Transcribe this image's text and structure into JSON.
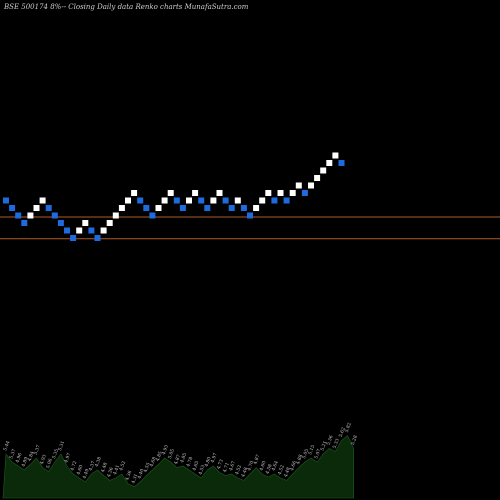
{
  "title": "BSE 500174  8%-- Closing Daily data  Renko  charts MunafaSutra.com",
  "chart_data": {
    "type": "renko",
    "symbol": "BSE 500174",
    "colors": {
      "background": "#000000",
      "up_brick": "#ffffff",
      "down_brick": "#1e6be0",
      "reference_line": "#b05a2a",
      "volume_fill": "#0a2a0a"
    },
    "bricks": [
      {
        "dir": "down",
        "level": 19
      },
      {
        "dir": "down",
        "level": 18
      },
      {
        "dir": "down",
        "level": 17
      },
      {
        "dir": "down",
        "level": 16
      },
      {
        "dir": "up",
        "level": 17
      },
      {
        "dir": "up",
        "level": 18
      },
      {
        "dir": "up",
        "level": 19
      },
      {
        "dir": "down",
        "level": 18
      },
      {
        "dir": "down",
        "level": 17
      },
      {
        "dir": "down",
        "level": 16
      },
      {
        "dir": "down",
        "level": 15
      },
      {
        "dir": "down",
        "level": 14
      },
      {
        "dir": "up",
        "level": 15
      },
      {
        "dir": "up",
        "level": 16
      },
      {
        "dir": "down",
        "level": 15
      },
      {
        "dir": "down",
        "level": 14
      },
      {
        "dir": "up",
        "level": 15
      },
      {
        "dir": "up",
        "level": 16
      },
      {
        "dir": "up",
        "level": 17
      },
      {
        "dir": "up",
        "level": 18
      },
      {
        "dir": "up",
        "level": 19
      },
      {
        "dir": "up",
        "level": 20
      },
      {
        "dir": "down",
        "level": 19
      },
      {
        "dir": "down",
        "level": 18
      },
      {
        "dir": "down",
        "level": 17
      },
      {
        "dir": "up",
        "level": 18
      },
      {
        "dir": "up",
        "level": 19
      },
      {
        "dir": "up",
        "level": 20
      },
      {
        "dir": "down",
        "level": 19
      },
      {
        "dir": "down",
        "level": 18
      },
      {
        "dir": "up",
        "level": 19
      },
      {
        "dir": "up",
        "level": 20
      },
      {
        "dir": "down",
        "level": 19
      },
      {
        "dir": "down",
        "level": 18
      },
      {
        "dir": "up",
        "level": 19
      },
      {
        "dir": "up",
        "level": 20
      },
      {
        "dir": "down",
        "level": 19
      },
      {
        "dir": "down",
        "level": 18
      },
      {
        "dir": "up",
        "level": 19
      },
      {
        "dir": "down",
        "level": 18
      },
      {
        "dir": "down",
        "level": 17
      },
      {
        "dir": "up",
        "level": 18
      },
      {
        "dir": "up",
        "level": 19
      },
      {
        "dir": "up",
        "level": 20
      },
      {
        "dir": "down",
        "level": 19
      },
      {
        "dir": "up",
        "level": 20
      },
      {
        "dir": "down",
        "level": 19
      },
      {
        "dir": "up",
        "level": 20
      },
      {
        "dir": "up",
        "level": 21
      },
      {
        "dir": "down",
        "level": 20
      },
      {
        "dir": "up",
        "level": 21
      },
      {
        "dir": "up",
        "level": 22
      },
      {
        "dir": "up",
        "level": 23
      },
      {
        "dir": "up",
        "level": 24
      },
      {
        "dir": "up",
        "level": 25
      },
      {
        "dir": "down",
        "level": 24
      }
    ],
    "level_range": [
      10,
      26
    ],
    "reference_lines": [
      16.8,
      13.9
    ],
    "volume": {
      "heights": [
        0.55,
        0.45,
        0.4,
        0.35,
        0.42,
        0.5,
        0.38,
        0.33,
        0.45,
        0.55,
        0.4,
        0.3,
        0.25,
        0.2,
        0.3,
        0.35,
        0.28,
        0.22,
        0.25,
        0.3,
        0.18,
        0.14,
        0.2,
        0.28,
        0.35,
        0.42,
        0.5,
        0.45,
        0.38,
        0.4,
        0.35,
        0.3,
        0.25,
        0.35,
        0.4,
        0.32,
        0.28,
        0.3,
        0.25,
        0.22,
        0.3,
        0.38,
        0.3,
        0.26,
        0.3,
        0.25,
        0.22,
        0.3,
        0.38,
        0.45,
        0.5,
        0.45,
        0.55,
        0.62,
        0.58,
        0.72,
        0.78,
        0.62
      ],
      "labels": [
        "5.44",
        "5.37",
        "4.96",
        "4.89",
        "4.84",
        "5.37",
        "4.93",
        "5.06",
        "5.35",
        "5.31",
        "4.97",
        "4.72",
        "4.60",
        "4.49",
        "4.37",
        "4.38",
        "4.48",
        "4.36",
        "4.41",
        "4.52",
        "4.36",
        "4.31",
        "4.40",
        "4.55",
        "4.68",
        "4.85",
        "4.93",
        "5.05",
        "4.87",
        "4.85",
        "4.78",
        "4.65",
        "4.53",
        "4.80",
        "4.97",
        "4.73",
        "4.71",
        "4.67",
        "4.52",
        "4.48",
        "4.70",
        "4.87",
        "4.60",
        "4.58",
        "4.64",
        "4.52",
        "4.48",
        "4.66",
        "4.88",
        "5.05",
        "5.15",
        "5.07",
        "5.21",
        "5.36",
        "5.33",
        "5.62",
        "5.82",
        "5.28"
      ]
    }
  }
}
